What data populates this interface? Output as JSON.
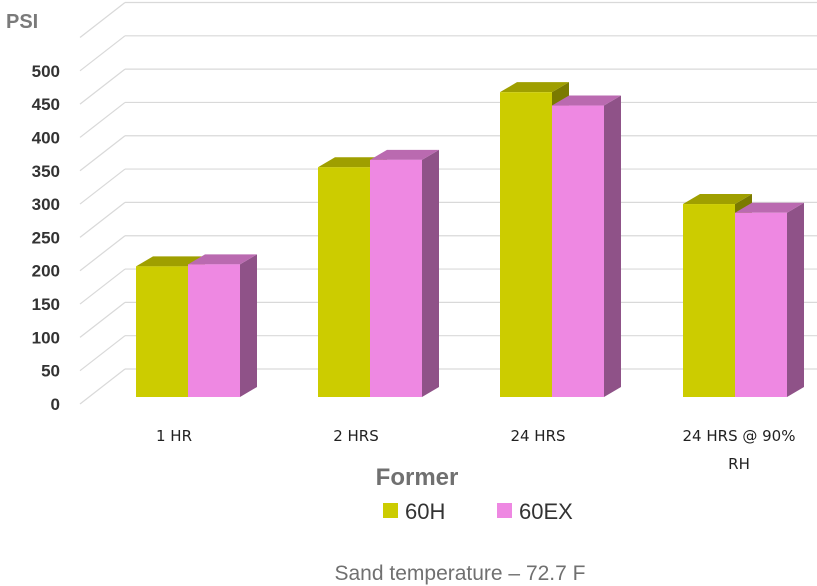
{
  "chart_data": {
    "type": "bar",
    "ylabel": "PSI",
    "xlabel": "Former",
    "categories": [
      "1 HR",
      "2 HRS",
      "24 HRS",
      "24 HRS @ 90% RH"
    ],
    "yticks": [
      "0",
      "50",
      "100",
      "150",
      "200",
      "250",
      "300",
      "350",
      "400",
      "450",
      "500"
    ],
    "ylim": [
      0,
      550
    ],
    "grid": true,
    "legend_position": "bottom",
    "series": [
      {
        "name": "60H",
        "values": [
          195,
          343,
          455,
          288
        ],
        "color": "#cccc00"
      },
      {
        "name": "60EX",
        "values": [
          198,
          354,
          435,
          275
        ],
        "color": "#ee88e2"
      }
    ],
    "bar_style": "3d-column",
    "footer": "Sand temperature – 72.7 F"
  }
}
